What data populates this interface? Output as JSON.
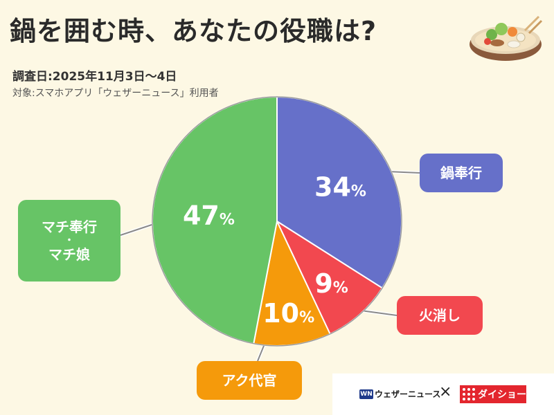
{
  "header": {
    "title": "鍋を囲む時、あなたの役職は?",
    "survey_date": "調査日:2025年11月3日〜4日",
    "target": "対象:スマホアプリ「ウェザーニュース」利用者"
  },
  "footer": {
    "brand1": "ウェザーニュース",
    "brand1_mark": "WN",
    "separator": "×",
    "brand2": "ダイショー"
  },
  "icons": [
    "hotpot-illustration-icon",
    "weathernews-logo-icon",
    "daisho-logo-icon"
  ],
  "chart_data": {
    "type": "pie",
    "title": "",
    "slices": [
      {
        "label": "鍋奉行",
        "value": 34,
        "display": "34",
        "unit": "%",
        "color": "#6670c9"
      },
      {
        "label": "火消し",
        "value": 9,
        "display": "9",
        "unit": "%",
        "color": "#f2484f"
      },
      {
        "label": "アク代官",
        "value": 10,
        "display": "10",
        "unit": "%",
        "color": "#f59a0b"
      },
      {
        "label": "マチ奉行・マチ娘",
        "value": 47,
        "display": "47",
        "unit": "%",
        "color": "#67c466"
      }
    ],
    "callouts": {
      "nabe": "鍋奉行",
      "hikeshi": "火消し",
      "aku": "アク代官",
      "machi_line1": "マチ奉行",
      "machi_dot": "・",
      "machi_line2": "マチ娘"
    }
  }
}
